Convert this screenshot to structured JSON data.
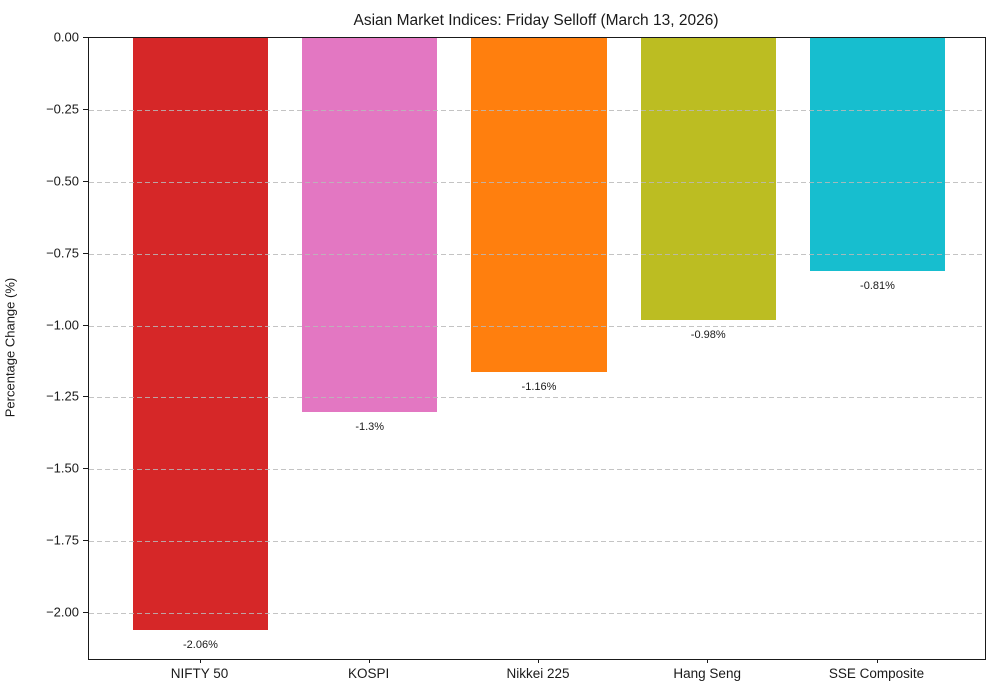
{
  "chart_data": {
    "type": "bar",
    "title": "Asian Market Indices: Friday Selloff (March 13, 2026)",
    "xlabel": "",
    "ylabel": "Percentage Change (%)",
    "categories": [
      "NIFTY 50",
      "KOSPI",
      "Nikkei 225",
      "Hang Seng",
      "SSE Composite"
    ],
    "values": [
      -2.06,
      -1.3,
      -1.16,
      -0.98,
      -0.81
    ],
    "bar_labels": [
      "-2.06%",
      "-1.3%",
      "-1.16%",
      "-0.98%",
      "-0.81%"
    ],
    "bar_colors": [
      "#d62728",
      "#e377c2",
      "#ff7f0e",
      "#bcbd22",
      "#17becf"
    ],
    "ylim": [
      -2.16,
      0
    ],
    "yticks": [
      0,
      -0.25,
      -0.5,
      -0.75,
      -1.0,
      -1.25,
      -1.5,
      -1.75,
      -2.0
    ],
    "ytick_labels": [
      "0.00",
      "−0.25",
      "−0.50",
      "−0.75",
      "−1.00",
      "−1.25",
      "−1.50",
      "−1.75",
      "−2.00"
    ],
    "grid": "horizontal-dashed-above-bars",
    "legend": "none",
    "background": "#ffffff",
    "text_color": "#1a1a1a"
  }
}
